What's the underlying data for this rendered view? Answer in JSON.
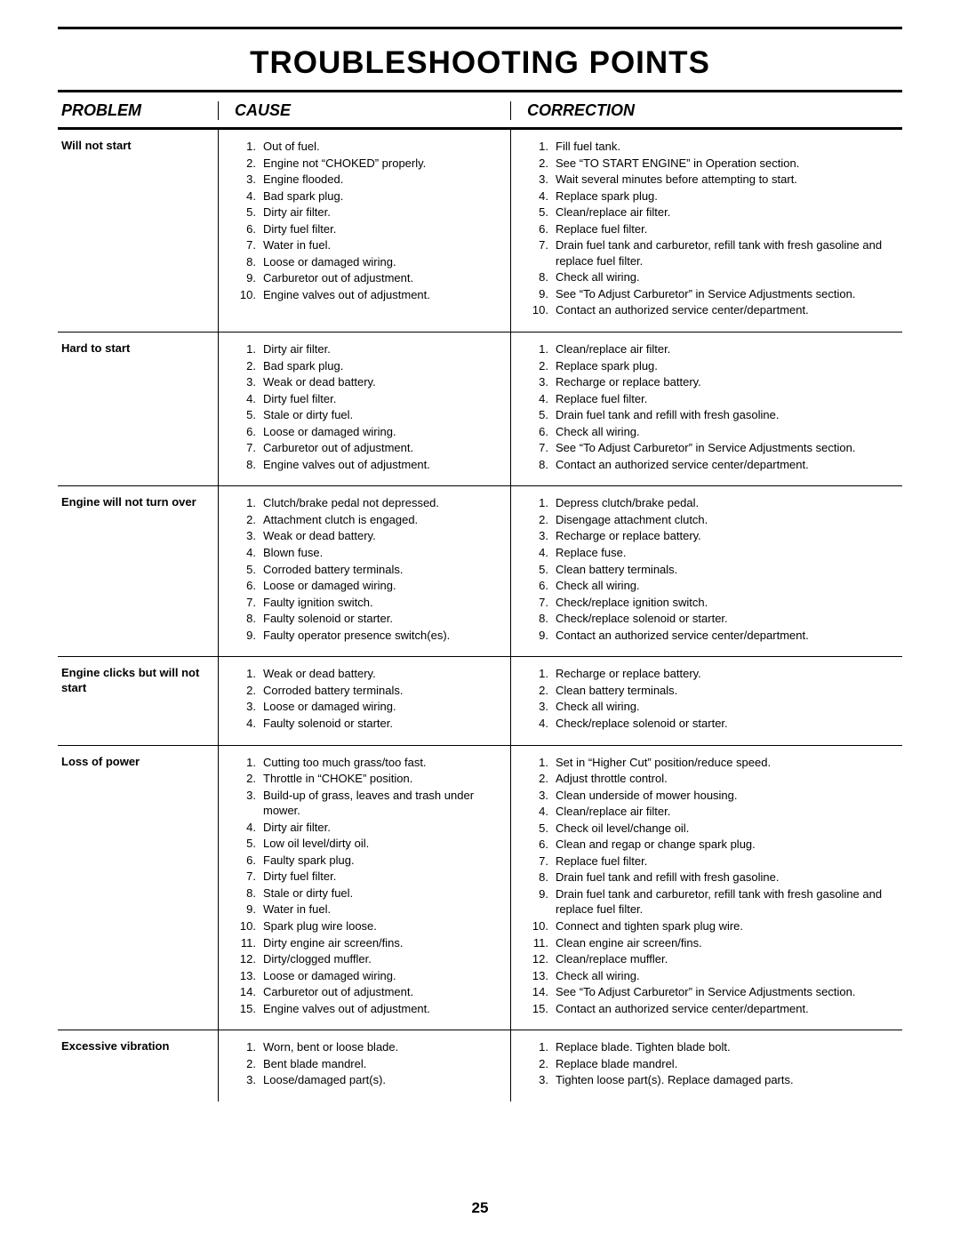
{
  "page": {
    "title": "TROUBLESHOOTING POINTS",
    "number": "25"
  },
  "headers": {
    "problem": "PROBLEM",
    "cause": "CAUSE",
    "correction": "CORRECTION"
  },
  "rows": [
    {
      "problem": "Will not start",
      "causes": [
        "Out of fuel.",
        "Engine not “CHOKED” properly.",
        "Engine flooded.",
        "Bad spark plug.",
        "Dirty air filter.",
        "Dirty fuel filter.",
        "Water in fuel.",
        "Loose or damaged wiring.",
        "Carburetor out of adjustment.",
        "Engine valves out of adjustment."
      ],
      "corrections": [
        "Fill fuel tank.",
        "See “TO START ENGINE” in Operation section.",
        "Wait several minutes before attempting to start.",
        "Replace spark plug.",
        "Clean/replace air filter.",
        "Replace fuel filter.",
        "Drain fuel tank and carburetor, refill tank with fresh gasoline and replace fuel filter.",
        "Check all wiring.",
        "See “To Adjust Carburetor” in Service Adjustments section.",
        "Contact an authorized service center/department."
      ]
    },
    {
      "problem": "Hard to start",
      "causes": [
        "Dirty air filter.",
        "Bad spark plug.",
        "Weak or dead battery.",
        "Dirty fuel filter.",
        "Stale or dirty fuel.",
        "Loose or damaged wiring.",
        "Carburetor out of adjustment.",
        "Engine valves out of adjustment."
      ],
      "corrections": [
        "Clean/replace air filter.",
        "Replace spark plug.",
        "Recharge or replace battery.",
        "Replace fuel filter.",
        "Drain fuel tank and refill with fresh gasoline.",
        "Check all wiring.",
        "See “To Adjust Carburetor” in Service Adjustments section.",
        "Contact an authorized service center/department."
      ]
    },
    {
      "problem": "Engine will not turn over",
      "causes": [
        "Clutch/brake pedal not depressed.",
        "Attachment clutch is engaged.",
        "Weak or dead battery.",
        "Blown fuse.",
        "Corroded battery terminals.",
        "Loose or damaged wiring.",
        "Faulty ignition switch.",
        "Faulty solenoid or starter.",
        "Faulty operator presence switch(es)."
      ],
      "corrections": [
        "Depress clutch/brake pedal.",
        "Disengage attachment clutch.",
        "Recharge or replace battery.",
        "Replace fuse.",
        "Clean battery terminals.",
        "Check all wiring.",
        "Check/replace ignition switch.",
        "Check/replace solenoid or starter.",
        "Contact an authorized service center/department."
      ]
    },
    {
      "problem": "Engine clicks but will not start",
      "causes": [
        "Weak or dead battery.",
        "Corroded battery terminals.",
        "Loose or damaged wiring.",
        "Faulty solenoid or starter."
      ],
      "corrections": [
        "Recharge or replace battery.",
        "Clean battery terminals.",
        "Check all wiring.",
        "Check/replace solenoid or starter."
      ]
    },
    {
      "problem": "Loss of power",
      "causes": [
        "Cutting too much grass/too fast.",
        "Throttle in “CHOKE” position.",
        "Build-up of grass, leaves and trash under mower.",
        "Dirty air filter.",
        "Low oil level/dirty oil.",
        "Faulty spark plug.",
        "Dirty fuel filter.",
        "Stale or dirty fuel.",
        "Water in fuel.",
        "Spark plug wire loose.",
        "Dirty engine air screen/fins.",
        "Dirty/clogged muffler.",
        "Loose or damaged wiring.",
        "Carburetor out of adjustment.",
        "Engine valves out of adjustment."
      ],
      "corrections": [
        "Set in “Higher Cut” position/reduce speed.",
        "Adjust throttle control.",
        "Clean underside of mower housing.",
        "Clean/replace air filter.",
        "Check oil level/change oil.",
        "Clean and regap or change spark plug.",
        "Replace fuel filter.",
        "Drain fuel tank and refill with fresh gasoline.",
        "Drain fuel tank and carburetor, refill tank with fresh gasoline and replace fuel filter.",
        "Connect and tighten spark plug wire.",
        "Clean engine air screen/fins.",
        "Clean/replace muffler.",
        "Check all wiring.",
        "See “To Adjust Carburetor” in Service Adjustments section.",
        "Contact an authorized service center/department."
      ]
    },
    {
      "problem": "Excessive vibration",
      "causes": [
        "Worn, bent or loose blade.",
        "Bent blade mandrel.",
        "Loose/damaged part(s)."
      ],
      "corrections": [
        "Replace blade.  Tighten blade bolt.",
        "Replace blade mandrel.",
        "Tighten loose part(s).  Replace damaged parts."
      ]
    }
  ]
}
